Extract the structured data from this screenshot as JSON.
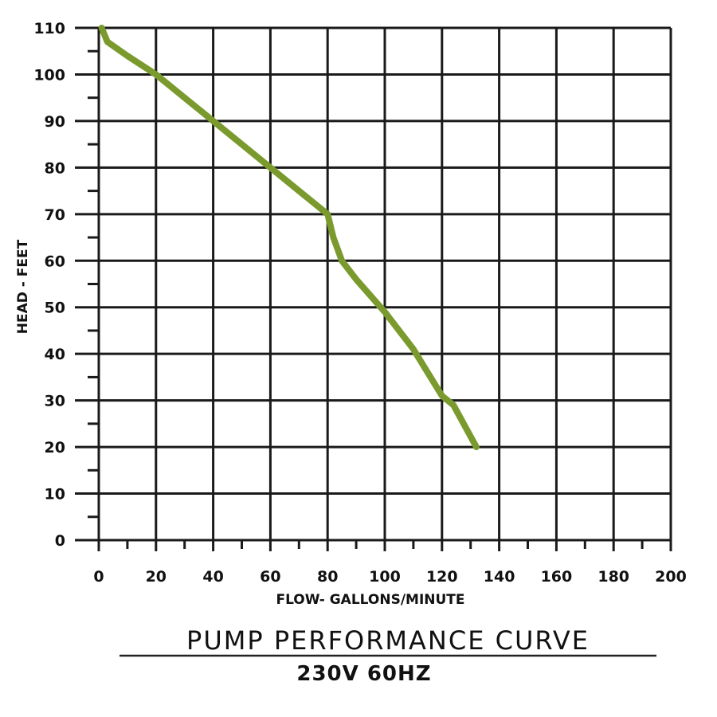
{
  "chart_data": {
    "type": "line",
    "title": "PUMP PERFORMANCE CURVE",
    "subtitle": "230V 60HZ",
    "xlabel": "FLOW- GALLONS/MINUTE",
    "ylabel": "HEAD - FEET",
    "xlim": [
      0,
      200
    ],
    "ylim": [
      0,
      110
    ],
    "xticks": [
      0,
      20,
      40,
      60,
      80,
      100,
      120,
      140,
      160,
      180,
      200
    ],
    "xtick_labels": [
      "0",
      "20",
      "40",
      "60",
      "80",
      "100",
      "120",
      "140",
      "160",
      "180",
      "200"
    ],
    "yticks": [
      0,
      10,
      20,
      30,
      40,
      50,
      60,
      70,
      80,
      90,
      100,
      110
    ],
    "ytick_labels": [
      "0",
      "10",
      "20",
      "30",
      "40",
      "50",
      "60",
      "70",
      "80",
      "90",
      "100",
      "110"
    ],
    "grid": true,
    "legend": "none",
    "series": [
      {
        "color": "#7a9a2e",
        "x": [
          1,
          3,
          10,
          20,
          30,
          40,
          50,
          60,
          70,
          80,
          82,
          85,
          90,
          100,
          110,
          115,
          120,
          124,
          132
        ],
        "y": [
          110,
          107,
          104,
          100,
          95,
          90,
          85,
          80,
          75,
          70,
          65,
          60,
          56,
          49,
          41,
          36,
          31,
          29,
          20
        ]
      }
    ]
  }
}
